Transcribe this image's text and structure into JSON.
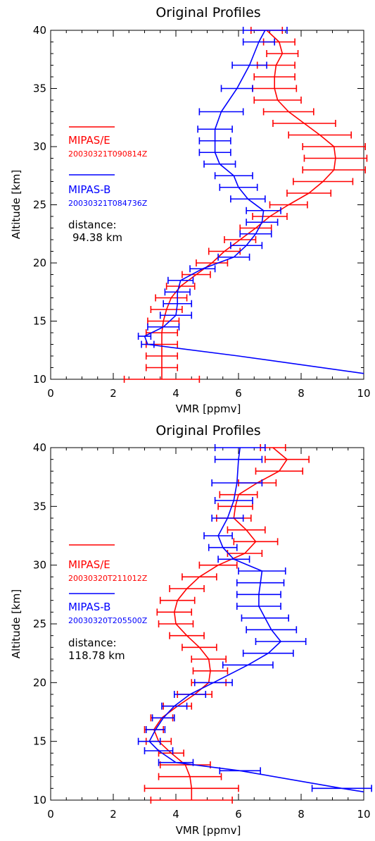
{
  "chart_data": [
    {
      "type": "line",
      "title": "Original Profiles",
      "xlabel": "VMR [ppmv]",
      "ylabel": "Altitude [km]",
      "xlim": [
        0,
        10
      ],
      "ylim": [
        10,
        40
      ],
      "x_ticks": [
        "0",
        "2",
        "4",
        "6",
        "8",
        "10"
      ],
      "y_ticks": [
        "10",
        "15",
        "20",
        "25",
        "30",
        "35",
        "40"
      ],
      "grid": false,
      "legend_position": "left",
      "legend": [
        {
          "name": "MIPAS/E",
          "label": "20030321T090814Z",
          "color": "#ff0000"
        },
        {
          "name": "MIPAS-B",
          "label": "20030321T084736Z",
          "color": "#0000ff"
        }
      ],
      "distance_label": "distance:",
      "distance_value": "94.38 km",
      "series": [
        {
          "name": "MIPAS/E",
          "color": "#ff0000",
          "points": [
            {
              "alt": 10.0,
              "vmr": 3.55,
              "err": 1.2
            },
            {
              "alt": 11.0,
              "vmr": 3.55,
              "err": 0.5
            },
            {
              "alt": 12.0,
              "vmr": 3.55,
              "err": 0.5
            },
            {
              "alt": 13.0,
              "vmr": 3.55,
              "err": 0.5
            },
            {
              "alt": 14.0,
              "vmr": 3.55,
              "err": 0.5
            },
            {
              "alt": 15.0,
              "vmr": 3.6,
              "err": 0.5
            },
            {
              "alt": 16.0,
              "vmr": 3.7,
              "err": 0.5
            },
            {
              "alt": 17.0,
              "vmr": 3.85,
              "err": 0.5
            },
            {
              "alt": 18.0,
              "vmr": 4.15,
              "err": 0.45
            },
            {
              "alt": 19.0,
              "vmr": 4.65,
              "err": 0.45
            },
            {
              "alt": 20.0,
              "vmr": 5.15,
              "err": 0.5
            },
            {
              "alt": 21.0,
              "vmr": 5.55,
              "err": 0.5
            },
            {
              "alt": 22.0,
              "vmr": 6.05,
              "err": 0.5
            },
            {
              "alt": 23.0,
              "vmr": 6.55,
              "err": 0.5
            },
            {
              "alt": 24.0,
              "vmr": 7.0,
              "err": 0.55
            },
            {
              "alt": 25.0,
              "vmr": 7.6,
              "err": 0.6
            },
            {
              "alt": 26.0,
              "vmr": 8.25,
              "err": 0.7
            },
            {
              "alt": 27.0,
              "vmr": 8.7,
              "err": 0.95
            },
            {
              "alt": 28.0,
              "vmr": 9.05,
              "err": 1.0
            },
            {
              "alt": 29.0,
              "vmr": 9.1,
              "err": 1.0
            },
            {
              "alt": 30.0,
              "vmr": 9.05,
              "err": 1.0
            },
            {
              "alt": 31.0,
              "vmr": 8.6,
              "err": 1.0
            },
            {
              "alt": 32.0,
              "vmr": 8.1,
              "err": 1.0
            },
            {
              "alt": 33.0,
              "vmr": 7.6,
              "err": 0.8
            },
            {
              "alt": 34.0,
              "vmr": 7.25,
              "err": 0.75
            },
            {
              "alt": 35.0,
              "vmr": 7.15,
              "err": 0.7
            },
            {
              "alt": 36.0,
              "vmr": 7.15,
              "err": 0.65
            },
            {
              "alt": 37.0,
              "vmr": 7.2,
              "err": 0.6
            },
            {
              "alt": 38.0,
              "vmr": 7.4,
              "err": 0.5
            },
            {
              "alt": 39.0,
              "vmr": 7.3,
              "err": 0.5
            },
            {
              "alt": 40.0,
              "vmr": 6.9,
              "err": 0.5
            }
          ]
        },
        {
          "name": "MIPAS-B",
          "color": "#0000ff",
          "points": [
            {
              "alt": 10.5,
              "vmr": 10.0,
              "err": null
            },
            {
              "alt": 12.0,
              "vmr": 6.0,
              "err": null
            },
            {
              "alt": 13.0,
              "vmr": 3.1,
              "err": 0.2
            },
            {
              "alt": 13.7,
              "vmr": 3.0,
              "err": 0.2
            },
            {
              "alt": 14.5,
              "vmr": 3.6,
              "err": 0.5
            },
            {
              "alt": 15.5,
              "vmr": 4.0,
              "err": 0.5
            },
            {
              "alt": 16.5,
              "vmr": 4.05,
              "err": 0.45
            },
            {
              "alt": 17.5,
              "vmr": 4.05,
              "err": 0.4
            },
            {
              "alt": 18.5,
              "vmr": 4.15,
              "err": 0.4
            },
            {
              "alt": 19.5,
              "vmr": 4.85,
              "err": 0.4
            },
            {
              "alt": 20.5,
              "vmr": 5.85,
              "err": 0.5
            },
            {
              "alt": 21.5,
              "vmr": 6.25,
              "err": 0.5
            },
            {
              "alt": 22.5,
              "vmr": 6.55,
              "err": 0.5
            },
            {
              "alt": 23.5,
              "vmr": 6.75,
              "err": 0.5
            },
            {
              "alt": 24.5,
              "vmr": 6.8,
              "err": 0.55
            },
            {
              "alt": 25.5,
              "vmr": 6.3,
              "err": 0.55
            },
            {
              "alt": 26.5,
              "vmr": 6.0,
              "err": 0.6
            },
            {
              "alt": 27.5,
              "vmr": 5.85,
              "err": 0.6
            },
            {
              "alt": 28.5,
              "vmr": 5.4,
              "err": 0.5
            },
            {
              "alt": 29.5,
              "vmr": 5.25,
              "err": 0.5
            },
            {
              "alt": 30.5,
              "vmr": 5.25,
              "err": 0.5
            },
            {
              "alt": 31.5,
              "vmr": 5.25,
              "err": 0.55
            },
            {
              "alt": 33.0,
              "vmr": 5.45,
              "err": 0.7
            },
            {
              "alt": 35.0,
              "vmr": 5.95,
              "err": 0.5
            },
            {
              "alt": 37.0,
              "vmr": 6.35,
              "err": 0.55
            },
            {
              "alt": 39.0,
              "vmr": 6.65,
              "err": 0.5
            },
            {
              "alt": 40.0,
              "vmr": 6.85,
              "err": 0.7
            }
          ]
        }
      ]
    },
    {
      "type": "line",
      "title": "Original Profiles",
      "xlabel": "VMR [ppmv]",
      "ylabel": "Altitude [km]",
      "xlim": [
        0,
        10
      ],
      "ylim": [
        10,
        40
      ],
      "x_ticks": [
        "0",
        "2",
        "4",
        "6",
        "8",
        "10"
      ],
      "y_ticks": [
        "10",
        "15",
        "20",
        "25",
        "30",
        "35",
        "40"
      ],
      "grid": false,
      "legend_position": "left",
      "legend": [
        {
          "name": "MIPAS/E",
          "label": "20030320T211012Z",
          "color": "#ff0000"
        },
        {
          "name": "MIPAS-B",
          "label": "20030320T205500Z",
          "color": "#0000ff"
        }
      ],
      "distance_label": "distance:",
      "distance_value": "118.78 km",
      "series": [
        {
          "name": "MIPAS/E",
          "color": "#ff0000",
          "points": [
            {
              "alt": 10.0,
              "vmr": 4.5,
              "err": 1.3
            },
            {
              "alt": 11.0,
              "vmr": 4.5,
              "err": 1.5
            },
            {
              "alt": 12.0,
              "vmr": 4.45,
              "err": 1.0
            },
            {
              "alt": 13.0,
              "vmr": 4.3,
              "err": 0.8
            },
            {
              "alt": 14.0,
              "vmr": 3.85,
              "err": 0.4
            },
            {
              "alt": 15.0,
              "vmr": 3.45,
              "err": 0.4
            },
            {
              "alt": 16.0,
              "vmr": 3.3,
              "err": 0.3
            },
            {
              "alt": 17.0,
              "vmr": 3.55,
              "err": 0.35
            },
            {
              "alt": 18.0,
              "vmr": 4.05,
              "err": 0.45
            },
            {
              "alt": 19.0,
              "vmr": 4.6,
              "err": 0.55
            },
            {
              "alt": 20.0,
              "vmr": 5.05,
              "err": 0.55
            },
            {
              "alt": 21.0,
              "vmr": 5.1,
              "err": 0.55
            },
            {
              "alt": 22.0,
              "vmr": 5.05,
              "err": 0.55
            },
            {
              "alt": 23.0,
              "vmr": 4.75,
              "err": 0.55
            },
            {
              "alt": 24.0,
              "vmr": 4.35,
              "err": 0.55
            },
            {
              "alt": 25.0,
              "vmr": 4.0,
              "err": 0.55
            },
            {
              "alt": 26.0,
              "vmr": 3.95,
              "err": 0.55
            },
            {
              "alt": 27.0,
              "vmr": 4.05,
              "err": 0.55
            },
            {
              "alt": 28.0,
              "vmr": 4.35,
              "err": 0.55
            },
            {
              "alt": 29.0,
              "vmr": 4.75,
              "err": 0.55
            },
            {
              "alt": 30.0,
              "vmr": 5.35,
              "err": 0.6
            },
            {
              "alt": 31.0,
              "vmr": 6.2,
              "err": 0.55
            },
            {
              "alt": 32.0,
              "vmr": 6.55,
              "err": 0.7
            },
            {
              "alt": 33.0,
              "vmr": 6.25,
              "err": 0.6
            },
            {
              "alt": 34.0,
              "vmr": 5.85,
              "err": 0.55
            },
            {
              "alt": 35.0,
              "vmr": 5.9,
              "err": 0.55
            },
            {
              "alt": 36.0,
              "vmr": 6.0,
              "err": 0.6
            },
            {
              "alt": 37.0,
              "vmr": 6.6,
              "err": 0.6
            },
            {
              "alt": 38.0,
              "vmr": 7.3,
              "err": 0.75
            },
            {
              "alt": 39.0,
              "vmr": 7.55,
              "err": 0.7
            },
            {
              "alt": 40.0,
              "vmr": 7.1,
              "err": 0.4
            }
          ]
        },
        {
          "name": "MIPAS-B",
          "color": "#0000ff",
          "points": [
            {
              "alt": 10.7,
              "vmr": 10.0,
              "err": null
            },
            {
              "alt": 11.0,
              "vmr": 9.3,
              "err": 0.95
            },
            {
              "alt": 12.5,
              "vmr": 6.05,
              "err": 0.65
            },
            {
              "alt": 13.2,
              "vmr": 4.0,
              "err": 0.55
            },
            {
              "alt": 14.2,
              "vmr": 3.45,
              "err": 0.45
            },
            {
              "alt": 15.0,
              "vmr": 3.15,
              "err": 0.35
            },
            {
              "alt": 16.0,
              "vmr": 3.35,
              "err": 0.3
            },
            {
              "alt": 17.0,
              "vmr": 3.6,
              "err": 0.35
            },
            {
              "alt": 18.0,
              "vmr": 3.95,
              "err": 0.4
            },
            {
              "alt": 19.0,
              "vmr": 4.45,
              "err": 0.5
            },
            {
              "alt": 20.0,
              "vmr": 5.2,
              "err": 0.6
            },
            {
              "alt": 21.5,
              "vmr": 6.3,
              "err": 0.8
            },
            {
              "alt": 22.5,
              "vmr": 6.95,
              "err": 0.8
            },
            {
              "alt": 23.5,
              "vmr": 7.35,
              "err": 0.8
            },
            {
              "alt": 24.5,
              "vmr": 7.05,
              "err": 0.8
            },
            {
              "alt": 25.5,
              "vmr": 6.85,
              "err": 0.75
            },
            {
              "alt": 26.5,
              "vmr": 6.65,
              "err": 0.7
            },
            {
              "alt": 27.5,
              "vmr": 6.65,
              "err": 0.7
            },
            {
              "alt": 28.5,
              "vmr": 6.7,
              "err": 0.75
            },
            {
              "alt": 29.5,
              "vmr": 6.75,
              "err": 0.75
            },
            {
              "alt": 30.5,
              "vmr": 5.85,
              "err": 0.5
            },
            {
              "alt": 31.5,
              "vmr": 5.5,
              "err": 0.45
            },
            {
              "alt": 32.5,
              "vmr": 5.35,
              "err": 0.45
            },
            {
              "alt": 34.0,
              "vmr": 5.65,
              "err": 0.5
            },
            {
              "alt": 35.5,
              "vmr": 5.85,
              "err": 0.6
            },
            {
              "alt": 37.0,
              "vmr": 5.95,
              "err": 0.8
            },
            {
              "alt": 39.0,
              "vmr": 6.0,
              "err": 0.75
            },
            {
              "alt": 40.0,
              "vmr": 6.05,
              "err": 0.8
            }
          ]
        }
      ]
    }
  ]
}
